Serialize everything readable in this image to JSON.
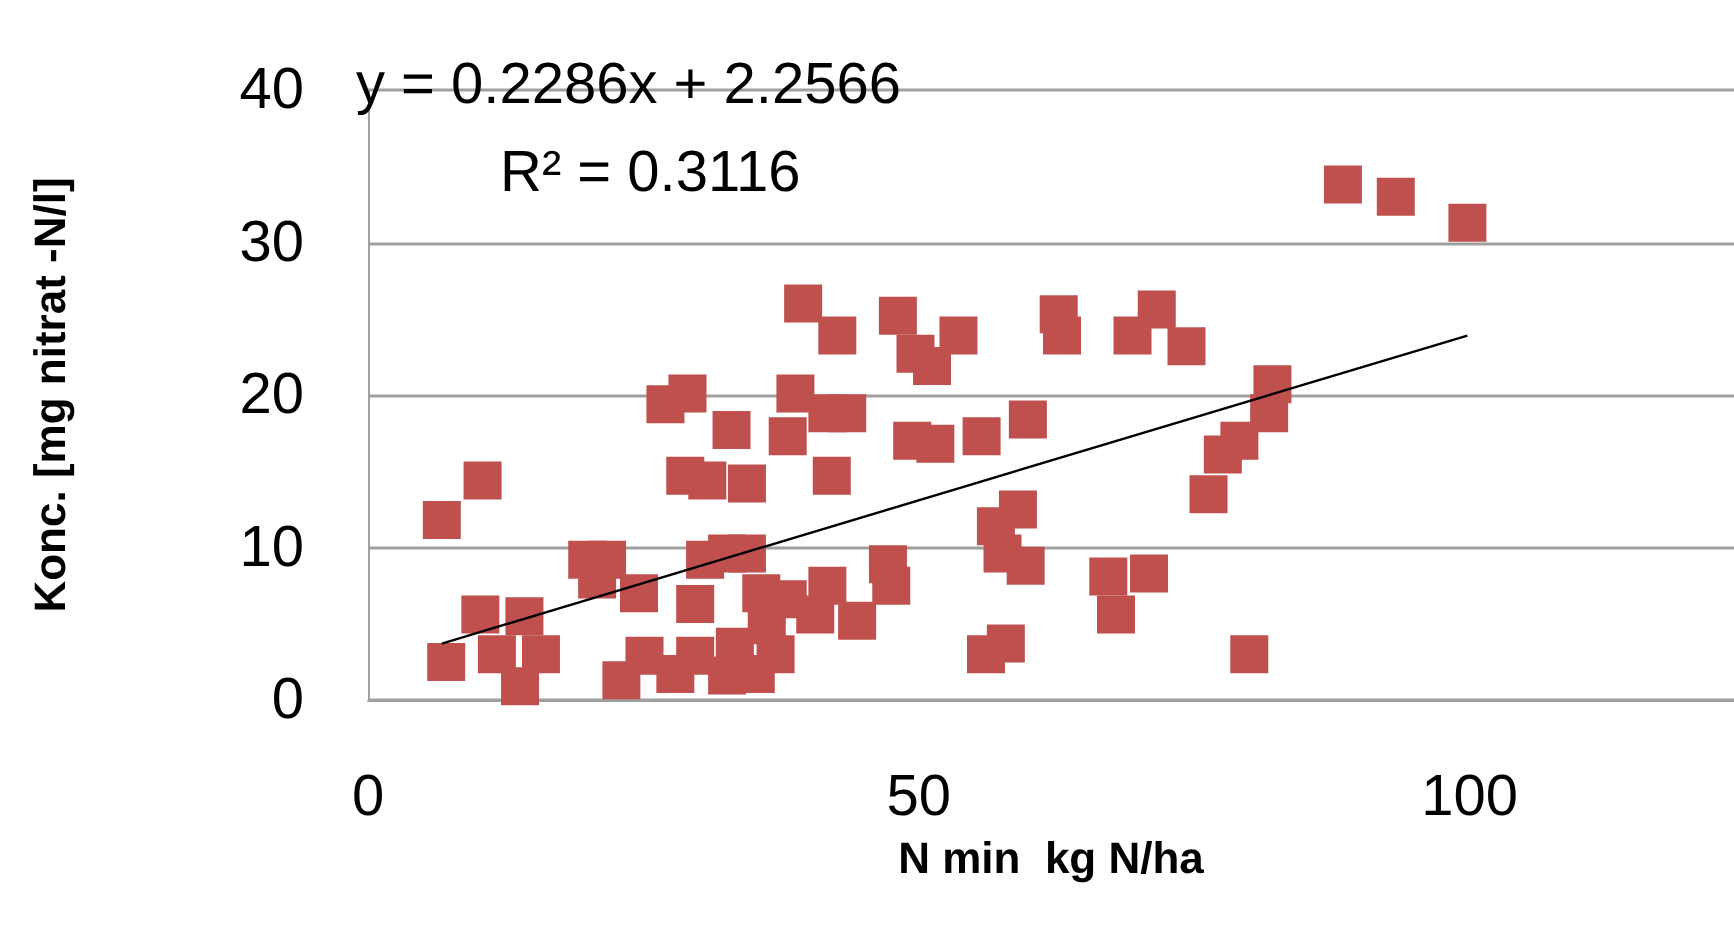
{
  "chart_data": {
    "type": "scatter",
    "xlabel": "N min  kg N/ha",
    "ylabel": "Konc. [mg nitrat -N/l]",
    "annotations": [
      "y = 0.2286x + 2.2566",
      "R² = 0.3116"
    ],
    "xlim": [
      0,
      124
    ],
    "xticks": [
      0,
      50,
      100
    ],
    "ylim": [
      0,
      40
    ],
    "yticks": [
      0,
      10,
      20,
      30,
      40
    ],
    "grid": "y",
    "marker": "square",
    "series": [
      {
        "color": "#c0504d",
        "x": [
          6.7,
          10.4,
          7.1,
          10.2,
          14.2,
          15.7,
          13.8,
          11.7,
          19.9,
          21.7,
          20.8,
          24.6,
          23.0,
          25.1,
          27.9,
          29.7,
          29.7,
          30.6,
          32.6,
          34.4,
          27.0,
          29.0,
          33.0,
          28.8,
          30.8,
          34.4,
          39.5,
          38.8,
          38.1,
          32.6,
          35.2,
          33.3,
          36.2,
          35.7,
          38.1,
          37.0,
          42.6,
          41.7,
          43.5,
          42.1,
          48.1,
          49.7,
          51.2,
          53.6,
          49.4,
          51.5,
          55.7,
          59.9,
          62.7,
          63.0,
          69.4,
          71.6,
          74.3,
          57.0,
          59.0,
          57.6,
          59.7,
          67.2,
          70.9,
          67.9,
          56.1,
          57.9,
          41.7,
          47.2,
          47.5,
          44.4,
          40.6,
          76.3,
          77.6,
          79.1,
          80.0,
          81.8,
          82.1,
          88.5,
          93.3,
          99.8
        ],
        "values": [
          11.8,
          14.4,
          2.5,
          5.6,
          5.5,
          3.0,
          0.9,
          3.0,
          9.2,
          9.2,
          7.9,
          7.0,
          1.3,
          2.9,
          1.7,
          2.9,
          6.3,
          9.2,
          9.6,
          9.6,
          19.4,
          20.1,
          17.7,
          14.7,
          14.4,
          14.2,
          26.0,
          20.1,
          17.3,
          1.6,
          1.7,
          3.5,
          4.9,
          7.0,
          6.6,
          3.0,
          23.9,
          18.8,
          18.8,
          14.7,
          25.2,
          22.7,
          21.9,
          23.9,
          17.0,
          16.8,
          17.3,
          18.4,
          25.3,
          23.9,
          23.9,
          25.6,
          23.2,
          11.4,
          12.5,
          9.6,
          8.8,
          8.1,
          8.3,
          5.6,
          3.0,
          3.7,
          7.5,
          8.9,
          7.5,
          5.2,
          5.6,
          13.5,
          16.1,
          17.0,
          3.0,
          18.8,
          20.7,
          33.8,
          33.0,
          31.3
        ]
      },
      {
        "type": "line",
        "color": "#000000",
        "marker": "none",
        "x": [
          6.7,
          99.8
        ],
        "values": [
          3.7,
          23.9
        ]
      }
    ]
  }
}
